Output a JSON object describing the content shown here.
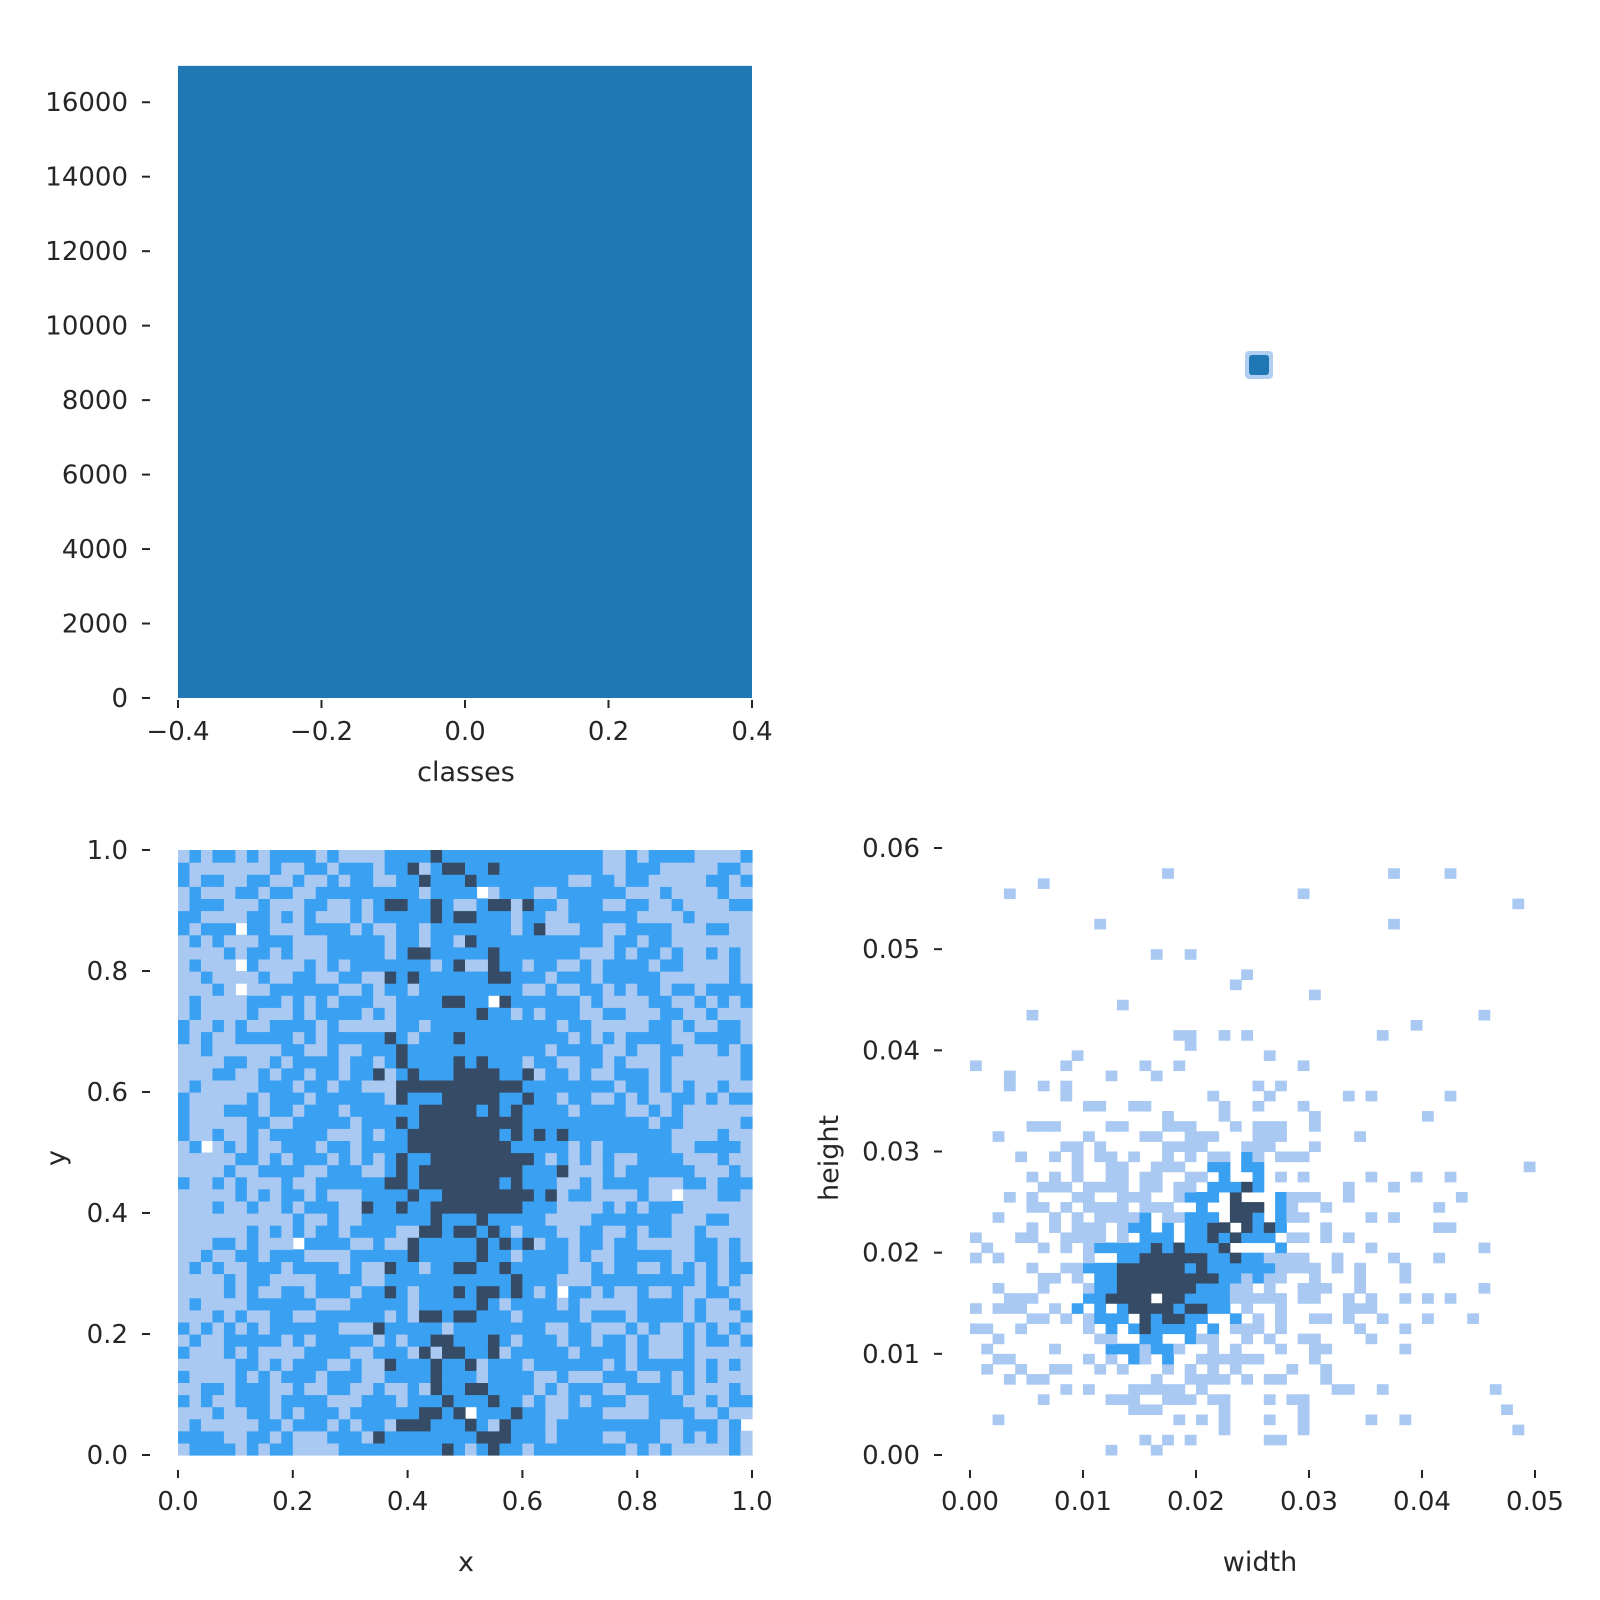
{
  "colors": {
    "bar": "#1f77b4",
    "heat_low": "#a9c9f2",
    "heat_mid": "#3aa0f2",
    "heat_high": "#354b66",
    "text": "#262626"
  },
  "chart_data": [
    {
      "id": "classes-hist",
      "type": "bar",
      "categories": [
        "0"
      ],
      "x": [
        0
      ],
      "values": [
        16977
      ],
      "bar_range": [
        -0.4,
        0.4
      ],
      "xlabel": "classes",
      "ylabel": "",
      "xlim": [
        -0.4,
        0.4
      ],
      "ylim": [
        0,
        17000
      ],
      "xticks": [
        -0.4,
        -0.2,
        0.0,
        0.2,
        0.4
      ],
      "xtick_labels": [
        "−0.4",
        "−0.2",
        "0.0",
        "0.2",
        "0.4"
      ],
      "yticks": [
        0,
        2000,
        4000,
        6000,
        8000,
        10000,
        12000,
        14000,
        16000
      ],
      "ytick_labels": [
        "0",
        "2000",
        "4000",
        "6000",
        "8000",
        "10000",
        "12000",
        "14000",
        "16000"
      ],
      "grid": false
    },
    {
      "id": "classes-scatter",
      "type": "scatter",
      "points": [
        {
          "x": 0,
          "y": 0
        }
      ],
      "xlabel": "",
      "ylabel": "",
      "grid": false
    },
    {
      "id": "xy-hist2d",
      "type": "heatmap",
      "xlabel": "x",
      "ylabel": "y",
      "xlim": [
        0,
        1
      ],
      "ylim": [
        0,
        1
      ],
      "bins": [
        50,
        50
      ],
      "density_peak": {
        "x": 0.5,
        "y": 0.5
      },
      "xticks": [
        0.0,
        0.2,
        0.4,
        0.6,
        0.8,
        1.0
      ],
      "xtick_labels": [
        "0.0",
        "0.2",
        "0.4",
        "0.6",
        "0.8",
        "1.0"
      ],
      "yticks": [
        0.0,
        0.2,
        0.4,
        0.6,
        0.8,
        1.0
      ],
      "ytick_labels": [
        "0.0",
        "0.2",
        "0.4",
        "0.6",
        "0.8",
        "1.0"
      ],
      "grid": false
    },
    {
      "id": "wh-hist2d",
      "type": "heatmap",
      "xlabel": "width",
      "ylabel": "height",
      "xlim": [
        0,
        0.05
      ],
      "ylim": [
        0,
        0.06
      ],
      "bins": [
        50,
        60
      ],
      "density_peak": {
        "x": 0.0165,
        "y": 0.0165
      },
      "xticks": [
        0.0,
        0.01,
        0.02,
        0.03,
        0.04,
        0.05
      ],
      "xtick_labels": [
        "0.00",
        "0.01",
        "0.02",
        "0.03",
        "0.04",
        "0.05"
      ],
      "yticks": [
        0.0,
        0.01,
        0.02,
        0.03,
        0.04,
        0.05,
        0.06
      ],
      "ytick_labels": [
        "0.00",
        "0.01",
        "0.02",
        "0.03",
        "0.04",
        "0.05",
        "0.06"
      ],
      "grid": false
    }
  ]
}
